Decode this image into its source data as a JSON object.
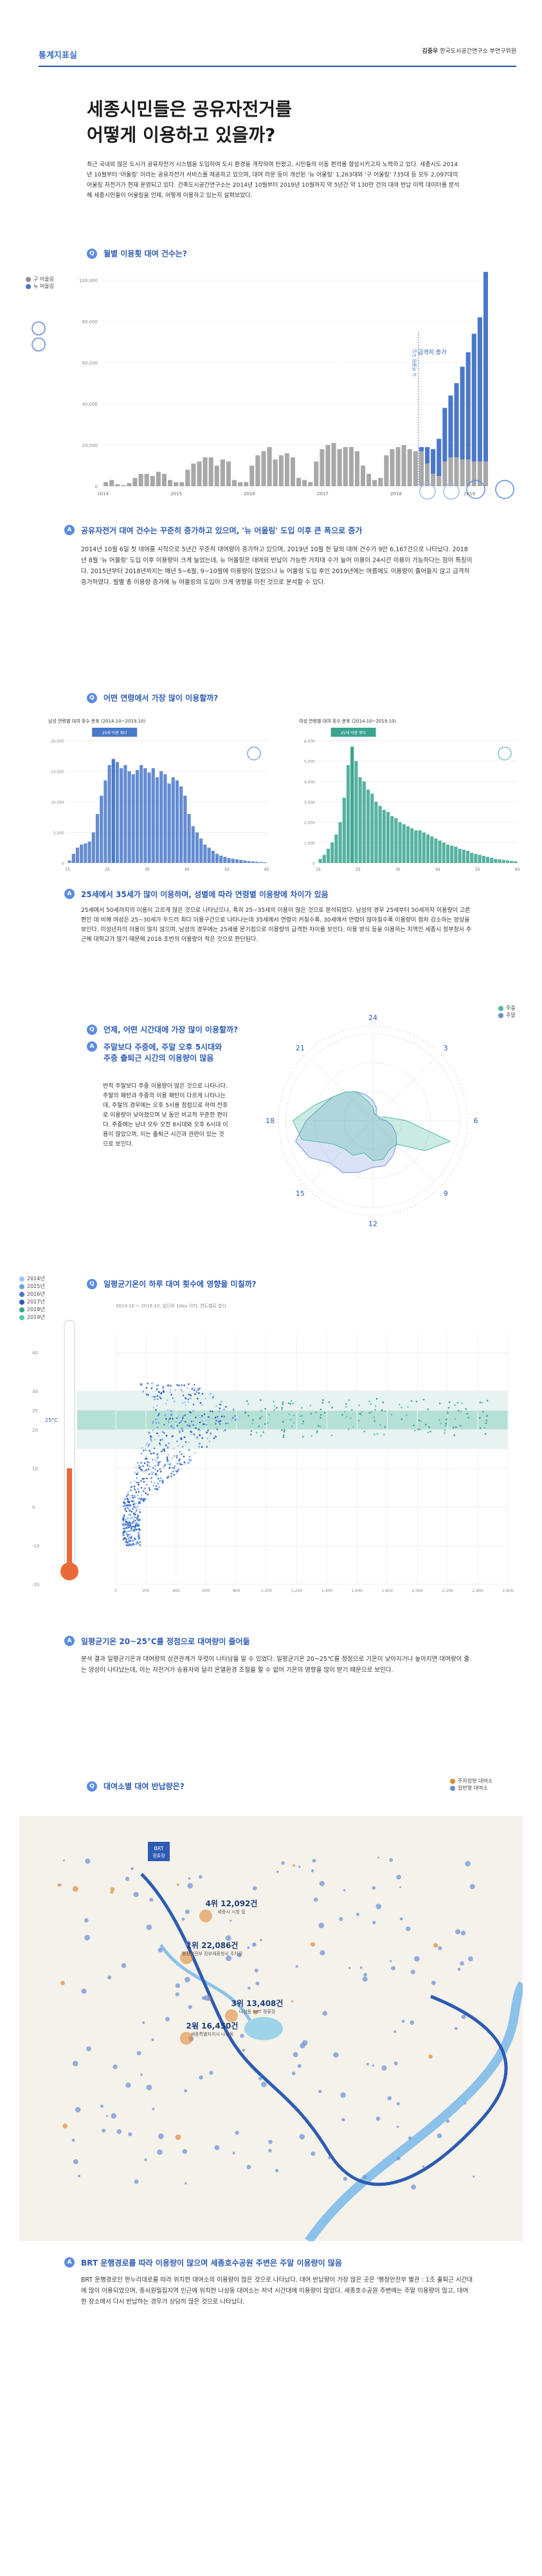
{
  "header": {
    "tag": "통계지표실",
    "author": "김중우",
    "org": "한국도시공간연구소 부연구위원"
  },
  "title": {
    "line1": "세종시민들은 공유자전거를",
    "line2": "어떻게 이용하고 있을까?"
  },
  "intro": "최근 국내외 많은 도시가 공유자전거 시스템을 도입하여 도시 환경을 개착하며 탄왔고, 시민들의 이동 편의를 향상시키고자 노력하고 있다. 세종시도 2014년 10월부터 '어울링' 이라는 공유자전거 서비스를 제공하고 있으며, 대여 라운 등이 개선된 '뉴 어울링' 1,263대와 '구 어울링' 735대 등 모두 2,097대의 어울링 자전거가 현재 운영되고 있다. 건축도시공간연구소는 2014년 10월부터 2019년 10월까지 약 5년간 약 130만 건의 대여 반납 이력 데이터를 분석해 세종시민들이 어울링을 언제, 어떻게 이용하고 있는지 살펴보았다.",
  "q1": {
    "num": "Q",
    "text": "월별 이용횟 대여 건수는?"
  },
  "c1_legend": [
    {
      "label": "구 어울링",
      "color": "#8f8f8f"
    },
    {
      "label": "뉴 어울링",
      "color": "#4a78c9"
    }
  ],
  "chart_data": [
    {
      "type": "bar",
      "id": "monthly",
      "yticks": [
        "0",
        "20,000",
        "40,000",
        "60,000",
        "80,000",
        "100,000"
      ],
      "ylim": [
        0,
        100000
      ],
      "xticks": [
        "2014",
        "2015",
        "2016",
        "2017",
        "2018",
        "2019"
      ],
      "old": [
        2,
        3,
        1,
        0.5,
        1.5,
        4,
        6,
        6,
        5,
        7,
        6,
        3,
        2,
        2,
        8,
        11,
        12,
        14,
        14,
        10,
        13,
        12,
        3,
        2,
        2,
        10,
        15,
        17,
        19,
        13,
        15,
        16,
        14,
        4,
        3,
        2,
        12,
        18,
        20,
        21,
        18,
        19,
        19,
        17,
        10,
        6,
        3,
        4,
        15,
        18,
        19,
        20,
        18,
        17,
        17,
        11,
        6,
        5,
        12,
        14,
        14,
        13,
        13,
        12,
        12,
        12
      ],
      "new": [
        0,
        0,
        0,
        0,
        0,
        0,
        0,
        0,
        0,
        0,
        0,
        0,
        0,
        0,
        0,
        0,
        0,
        0,
        0,
        0,
        0,
        0,
        0,
        0,
        0,
        0,
        0,
        0,
        0,
        0,
        0,
        0,
        0,
        0,
        0,
        0,
        0,
        0,
        0,
        0,
        0,
        0,
        0,
        0,
        0,
        0,
        0,
        0,
        0,
        0,
        0,
        0,
        0,
        0,
        2,
        8,
        12,
        18,
        26,
        30,
        36,
        45,
        52,
        62,
        70,
        92
      ],
      "annotations": [
        "뉴 어울링 도입",
        "급격히 증가"
      ]
    },
    {
      "type": "bar",
      "id": "age-male",
      "subtitle": "남성 연령별 대여 횟수 분포 (2014.10~2019.10)",
      "badge": "25세 이용 최다",
      "ylim": [
        0,
        20000
      ],
      "yticks": [
        "0",
        "5,000",
        "10,000",
        "15,000",
        "20,000"
      ],
      "xticks": [
        "15",
        "25",
        "35",
        "45",
        "55",
        "65"
      ]
    },
    {
      "type": "bar",
      "id": "age-female",
      "subtitle": "여성 연령별 대여 횟수 분포 (2014.10~2019.10)",
      "badge": "25세 이용 최다",
      "ylim": [
        0,
        6000
      ],
      "yticks": [
        "0",
        "1,000",
        "2,000",
        "3,000",
        "4,000",
        "5,000",
        "6,000"
      ],
      "xticks": [
        "15",
        "25",
        "35",
        "45",
        "55",
        "65"
      ]
    },
    {
      "type": "radar",
      "id": "hourly",
      "labels": [
        "24",
        "3",
        "6",
        "9",
        "12",
        "15",
        "18",
        "21"
      ],
      "series": [
        {
          "name": "주말",
          "color": "#6b8fd6"
        },
        {
          "name": "주중",
          "color": "#4fb9a3"
        }
      ]
    },
    {
      "type": "scatter",
      "id": "temperature",
      "subtitle": "2014.10 ~ 2019.10, 일단위 1day 이터, 연도별로 합산",
      "xticks": [
        "0",
        "200",
        "400",
        "600",
        "800",
        "1,000",
        "1,200",
        "1,400",
        "1,600",
        "1,800",
        "2,000",
        "2,200",
        "2,400",
        "2,600"
      ],
      "yticks": [
        "-20",
        "-10",
        "0",
        "10",
        "20",
        "25",
        "30",
        "40"
      ],
      "xlim": [
        0,
        2700
      ],
      "ylim": [
        -20,
        45
      ],
      "band": [
        20,
        25
      ]
    }
  ],
  "a1": {
    "num": "A",
    "head": "공유자전거 대여 건수는 꾸준히 증가하고 있으며, '뉴 어울링' 도입 이후 큰 폭으로 증가",
    "body": "2014년 10월 6일 첫 대여를 시작으로 5년간 꾸준히 대여량이 증가하고 있으며, 2019년 10월 한 달의 대여 건수가 9만 6,167건으로 나타났다. 2018년 8월 '뉴 어울링' 도입 이후 이용량이 크게 늘었는데, 뉴 어울링은 대여와 반납이 가능한 거치대 수가 늘어 이용이 24시간 이용이 가능하다는 점이 특징이다. 2015년부터 2018년까지는 매년 5~6월, 9~10월에 이용량이 많았으나 뉴 어울링 도입 후인 2019년에는 여름에도 이용량이 줄어들지 않고 급격히 증가하였다. 월별 총 이용량 증가에 뉴 어울링의 도입이 크게 영향을 미친 것으로 분석할 수 있다."
  },
  "q2": {
    "num": "Q",
    "text": "어떤 연령에서 가장 많이 이용할까?"
  },
  "a2": {
    "num": "A",
    "head": "25세에서 35세가 많이 이용하며, 성별에 따라 연령별 이용량에 차이가 있음",
    "body": "25세에서 50세까지의 이용이 고르게 많은 것으로 나타났으나, 특히 25~35세의 이용이 많은 것으로 분석되었다. 남성의 경우 25세부터 50세까지 이용량이 고른 편인 데 비해 여성은 25~30세가 두드러 최다 이용구간으로 나타나는데 35세에서 연령이 커질수록, 30세에서 연령이 많아질수록 이용량이 점차 감소하는 양상을 보인다. 미성년자의 이용이 많지 않으며, 남성의 경우에는 25세를 문기점으로 이용량의 급격한 차이를 보인다. 이용 방식 등을 이용하는 지역인 세종시 정부청사 주근해 대학교가 많기 때문에 2018 초반의 이용량이 적은 것으로 판단된다."
  },
  "q3": {
    "num": "Q",
    "text": "언제, 어떤 시간대에 가장 많이 이용할까?"
  },
  "a3": {
    "num": "A",
    "head": "주말보다 주중에, 주말 오후 5시대와 주중 출퇴근 시간의 이용량이 많음",
    "body": "반적 주말보다 주중 이용량이 많은 것으로 나타나다. 주말의 패턴과 주중의 이용 패턴이 다르게 나타나는데, 주말의 경우에는 오후 5시를 정점으로 하여 전후로 이용량이 낮아졌으며 낮 동안 비교적 꾸준한 편이다. 주중에는 남녀 모두 오전 8시대와 오후 6시대 이용이 많았으며, 이는 출퇴근 시간과 관련이 있는 것으로 보인다.",
    "legend": [
      "주중",
      "주말"
    ]
  },
  "q4": {
    "num": "Q",
    "text": "일평균기온이 하루 대여 횟수에 영향을 미칠까?"
  },
  "c4_legend": [
    "2014년",
    "2015년",
    "2016년",
    "2017년",
    "2018년",
    "2019년"
  ],
  "thermo": {
    "unit": "25°C"
  },
  "a4": {
    "num": "A",
    "head": "일평균기온 20~25°C를 정점으로 대여량이 줄어듦",
    "body": "분석 결과 일평균기온과 대여량의 상관관계가 뚜렷이 나타남을 알 수 있었다. 일평균기온 20~25℃를 정점으로 기온이 낮아지거나 높아지면 대여량이 줄는 양상이 나타났는데, 이는 자전거가 승용자와 달리 온열환경 조절을 할 수 없어 기온의 영향을 많이 받기 때문으로 보인다."
  },
  "q5": {
    "num": "Q",
    "text": "대여소별 대여 반납량은?"
  },
  "map_legend": [
    {
      "label": "주차장형 대여소",
      "color": "#e08a3a"
    },
    {
      "label": "일반형 대여소",
      "color": "#6b8fd6"
    }
  ],
  "map": {
    "brt": "BRT",
    "brt2": "정류장",
    "r1": {
      "rank": "1위 22,086건",
      "name": "행정안전부 정부세종청사 주차장"
    },
    "r2": {
      "rank": "2위 16,450건",
      "name": "세종특별자치시 나성동"
    },
    "r3": {
      "rank": "3위 13,408건",
      "name": "나성동 BRT 정류장"
    },
    "r4": {
      "rank": "4위 12,092건",
      "name": "세종시 시청 앞"
    }
  },
  "a5": {
    "num": "A",
    "head": "BRT 운행경로를 따라 이용량이 많으며 세종호수공원 주변은 주말 이용량이 많음",
    "body": "BRT 운행경로인 한누리대로를 따라 위치한 대여소의 이용량이 많은 것으로 나타났다. 대여 반납량이 가장 많은 곳은 '행정안전부 별관 : 1조 출퇴근 시간대에 많이 이용되었으며, 종사원밀집지역 인근에 위치한 나성동 대여소는 저녁 시간대에 이용량이 많았다. 세종호수공원 주변에는 주말 이용량이 많고, 대여한 장소에서 다시 반납하는 경우가 상당히 많은 것으로 나타났다."
  }
}
